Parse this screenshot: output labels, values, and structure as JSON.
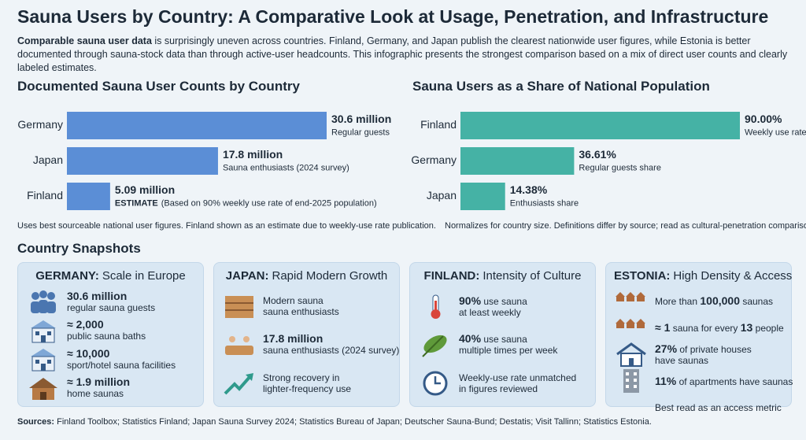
{
  "title": "Sauna Users by Country: A Comparative Look at Usage, Penetration, and Infrastructure",
  "intro": {
    "lead": "Comparable sauna user data",
    "text": " is surprisingly uneven across countries. Finland, Germany, and Japan publish the clearest nationwide user figures, while Estonia is better documented through sauna-stock data than through active-user headcounts. This infographic presents the strongest comparison based on a mix of direct user counts and clearly labeled estimates."
  },
  "chart_data": [
    {
      "type": "bar",
      "orientation": "horizontal",
      "title": "Documented Sauna User Counts by Country",
      "categories": [
        "Germany",
        "Japan",
        "Finland"
      ],
      "values": [
        30.6,
        17.8,
        5.09
      ],
      "value_labels": [
        "30.6 million",
        "17.8 million",
        "5.09 million"
      ],
      "notes": [
        "Regular guests",
        "Sauna enthusiasts (2024 survey)",
        "(Based on 90% weekly use rate of end-2025 population)"
      ],
      "note_tags": [
        null,
        null,
        "ESTIMATE"
      ],
      "color": "#5b8ed6",
      "footnote": "Uses best sourceable national user figures. Finland shown as an estimate due to weekly-use rate publication."
    },
    {
      "type": "bar",
      "orientation": "horizontal",
      "title": "Sauna Users as a Share of National Population",
      "categories": [
        "Finland",
        "Germany",
        "Japan"
      ],
      "values": [
        90,
        36.61,
        14.38
      ],
      "value_labels": [
        "90.00%",
        "36.61%",
        "14.38%"
      ],
      "notes": [
        "Weekly use rate",
        "Regular guests share",
        "Enthusiasts share"
      ],
      "note_tags": [
        null,
        null,
        null
      ],
      "color": "#45b2a5",
      "footnote": "Normalizes for country size. Definitions differ by source; read as cultural-penetration comparison."
    }
  ],
  "snapshots_title": "Country Snapshots",
  "cards": [
    {
      "country": "GERMANY:",
      "subtitle": "Scale in Europe",
      "items": [
        {
          "lines": [
            [
              {
                "text": "30.6 million",
                "bold": true
              }
            ],
            [
              {
                "text": "regular sauna guests"
              }
            ]
          ]
        },
        {
          "lines": [
            [
              {
                "text": "≈ 2,000",
                "bold": true
              }
            ],
            [
              {
                "text": "public sauna baths"
              }
            ]
          ]
        },
        {
          "lines": [
            [
              {
                "text": "≈ 10,000",
                "bold": true
              }
            ],
            [
              {
                "text": "sport/hotel sauna facilities"
              }
            ]
          ]
        },
        {
          "lines": [
            [
              {
                "text": "≈ 1.9 million",
                "bold": true
              }
            ],
            [
              {
                "text": "home saunas"
              }
            ]
          ]
        }
      ]
    },
    {
      "country": "JAPAN:",
      "subtitle": "Rapid Modern Growth",
      "items": [
        {
          "lines": [
            [
              {
                "text": "Modern sauna"
              }
            ],
            [
              {
                "text": "sauna enthusiasts"
              }
            ]
          ]
        },
        {
          "lines": [
            [
              {
                "text": "17.8 million",
                "bold": true
              }
            ],
            [
              {
                "text": "sauna enthusiasts (2024 survey)"
              }
            ]
          ]
        },
        {
          "lines": [
            [
              {
                "text": "Strong recovery in"
              }
            ],
            [
              {
                "text": "lighter-frequency use"
              }
            ]
          ]
        }
      ]
    },
    {
      "country": "FINLAND:",
      "subtitle": "Intensity of Culture",
      "items": [
        {
          "lines": [
            [
              {
                "text": "90%",
                "bold": true
              },
              {
                "text": " use sauna"
              }
            ],
            [
              {
                "text": "at least weekly"
              }
            ]
          ]
        },
        {
          "lines": [
            [
              {
                "text": "40%",
                "bold": true
              },
              {
                "text": " use sauna"
              }
            ],
            [
              {
                "text": "multiple times per week"
              }
            ]
          ]
        },
        {
          "lines": [
            [
              {
                "text": "Weekly-use rate unmatched"
              }
            ],
            [
              {
                "text": "in figures reviewed"
              }
            ]
          ]
        }
      ]
    },
    {
      "country": "ESTONIA:",
      "subtitle": "High Density & Access",
      "items": [
        {
          "lines": [
            [
              {
                "text": "More than "
              },
              {
                "text": "100,000",
                "bold": true
              },
              {
                "text": " saunas"
              }
            ]
          ]
        },
        {
          "lines": [
            [
              {
                "text": "≈ 1",
                "bold": true
              },
              {
                "text": " sauna for every "
              },
              {
                "text": "13",
                "bold": true
              },
              {
                "text": " people"
              }
            ]
          ]
        },
        {
          "lines": [
            [
              {
                "text": "27%",
                "bold": true
              },
              {
                "text": " of private houses"
              }
            ],
            [
              {
                "text": "have saunas"
              }
            ]
          ]
        },
        {
          "lines": [
            [
              {
                "text": "11%",
                "bold": true
              },
              {
                "text": " of apartments have saunas"
              }
            ]
          ]
        },
        {
          "lines": [
            [
              {
                "text": "Best read as an access metric"
              }
            ]
          ]
        }
      ]
    }
  ],
  "sources": {
    "label": "Sources:",
    "text": " Finland Toolbox; Statistics Finland; Japan Sauna Survey 2024; Statistics Bureau of Japan; Deutscher Sauna-Bund; Destatis; Visit Tallinn; Statistics Estonia."
  }
}
